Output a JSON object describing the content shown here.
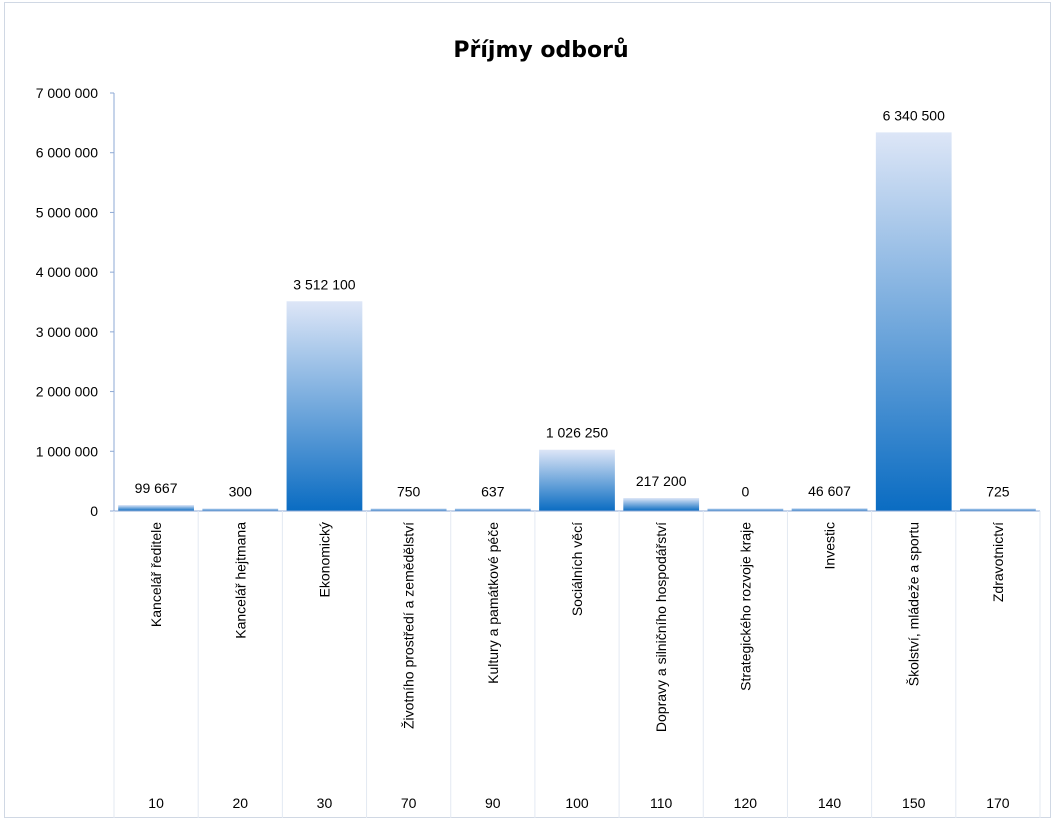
{
  "chart_data": {
    "type": "bar",
    "title": "Příjmy odborů",
    "ylim": [
      0,
      7000000
    ],
    "yticks": [
      "0",
      "1 000 000",
      "2 000 000",
      "3 000 000",
      "4 000 000",
      "5 000 000",
      "6 000 000",
      "7 000 000"
    ],
    "categories": [
      "Kancelář ředitele",
      "Kancelář hejtmana",
      "Ekonomický",
      "Životního prostředí a zemědělství",
      "Kultury a památkové péče",
      "Sociálních věcí",
      "Dopravy a silničního hospodářství",
      "Strategického rozvoje kraje",
      "Investic",
      "Školství, mládeže a sportu",
      "Zdravotnictví"
    ],
    "codes": [
      "10",
      "20",
      "30",
      "70",
      "90",
      "100",
      "110",
      "120",
      "140",
      "150",
      "170"
    ],
    "values": [
      99667,
      300,
      3512100,
      750,
      637,
      1026250,
      217200,
      0,
      46607,
      6340500,
      725
    ],
    "data_labels": [
      "99 667",
      "300",
      "3 512 100",
      "750",
      "637",
      "1 026 250",
      "217 200",
      "0",
      "46 607",
      "6 340 500",
      "725"
    ],
    "grid": false,
    "legend": "none",
    "colors": {
      "bar_top": "#dde6f7",
      "bar_bottom": "#0a6cc2",
      "axis": "#8ea9d4",
      "frame": "#d0d8e4"
    }
  }
}
